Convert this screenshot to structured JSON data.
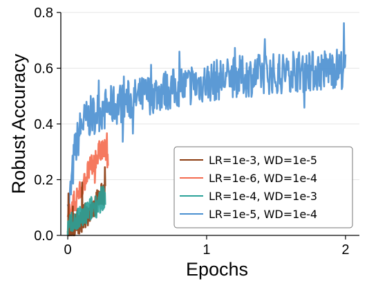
{
  "chart_data": {
    "type": "line",
    "title": "",
    "xlabel": "Epochs",
    "ylabel": "Robust Accuracy",
    "xlim": [
      -0.05,
      2.1
    ],
    "ylim": [
      0.0,
      0.8
    ],
    "xticks": [
      0,
      1,
      2
    ],
    "xtick_labels": [
      "0",
      "1",
      "2"
    ],
    "yticks": [
      0.0,
      0.2,
      0.4,
      0.6,
      0.8
    ],
    "ytick_labels": [
      "0.0",
      "0.2",
      "0.4",
      "0.6",
      "0.8"
    ],
    "grid": "horizontal",
    "legend_position": "bottom-right",
    "series": [
      {
        "name": "LR=1e-3, WD=1e-5",
        "color": "#8b3a0e",
        "x": [
          0.0,
          0.03,
          0.06,
          0.09,
          0.12,
          0.15,
          0.18,
          0.21,
          0.24,
          0.27
        ],
        "y": [
          0.02,
          0.03,
          0.05,
          0.04,
          0.07,
          0.08,
          0.1,
          0.12,
          0.14,
          0.16
        ]
      },
      {
        "name": "LR=1e-6, WD=1e-4",
        "color": "#f46a4e",
        "x": [
          0.0,
          0.03,
          0.06,
          0.09,
          0.12,
          0.15,
          0.18,
          0.21,
          0.24,
          0.27,
          0.29
        ],
        "y": [
          0.05,
          0.1,
          0.13,
          0.16,
          0.2,
          0.23,
          0.25,
          0.28,
          0.31,
          0.3,
          0.28
        ]
      },
      {
        "name": "LR=1e-4, WD=1e-3",
        "color": "#2aa198",
        "x": [
          0.0,
          0.03,
          0.06,
          0.09,
          0.12,
          0.15,
          0.18,
          0.21,
          0.24,
          0.27
        ],
        "y": [
          0.02,
          0.04,
          0.05,
          0.06,
          0.07,
          0.09,
          0.1,
          0.11,
          0.13,
          0.14
        ]
      },
      {
        "name": "LR=1e-5, WD=1e-4",
        "color": "#4a8fd0",
        "x": [
          0.0,
          0.05,
          0.1,
          0.2,
          0.3,
          0.4,
          0.5,
          0.6,
          0.7,
          0.8,
          0.9,
          1.0,
          1.1,
          1.2,
          1.3,
          1.4,
          1.5,
          1.6,
          1.7,
          1.8,
          1.9,
          2.0
        ],
        "y": [
          0.05,
          0.3,
          0.4,
          0.44,
          0.46,
          0.48,
          0.49,
          0.51,
          0.52,
          0.53,
          0.54,
          0.55,
          0.56,
          0.57,
          0.57,
          0.58,
          0.58,
          0.59,
          0.59,
          0.59,
          0.6,
          0.6
        ]
      }
    ]
  }
}
